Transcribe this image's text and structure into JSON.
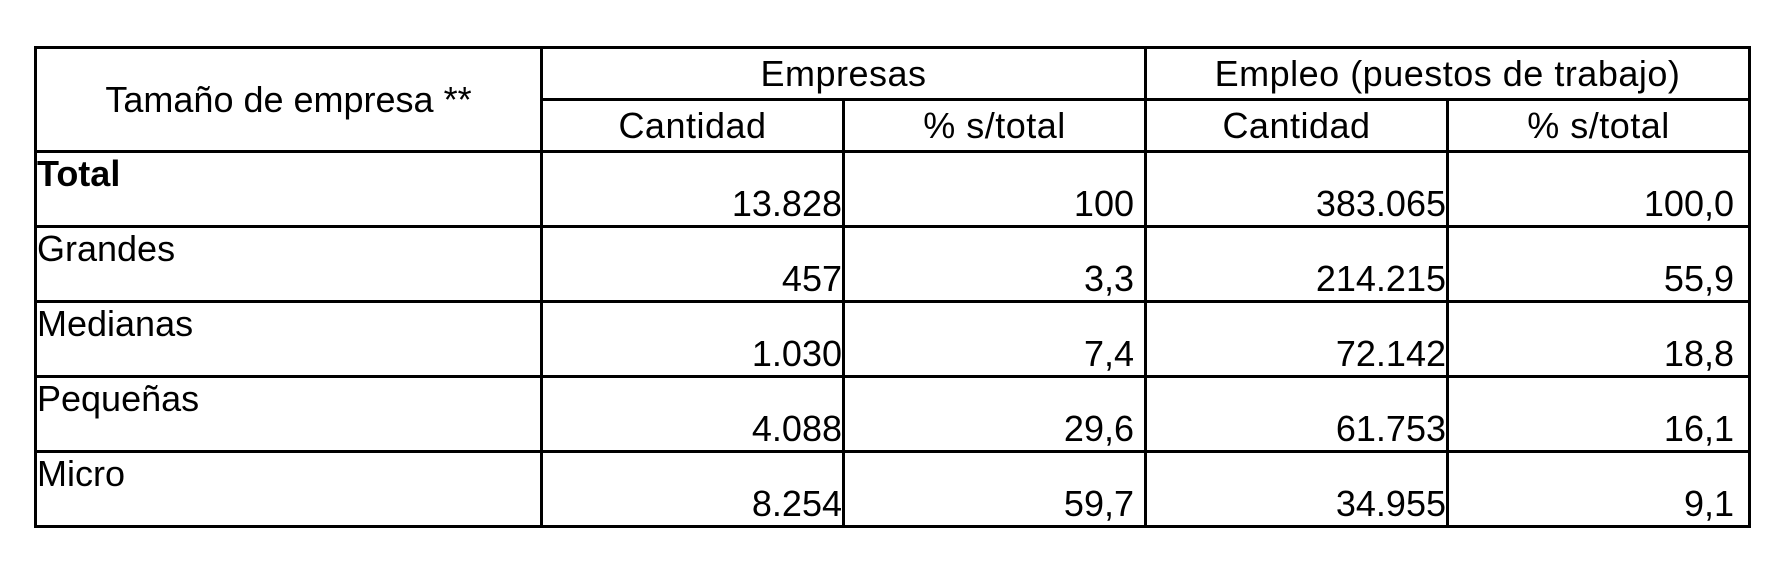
{
  "table": {
    "header": {
      "row_label": "Tamaño de empresa **",
      "groups": [
        {
          "label": "Empresas",
          "subs": [
            "Cantidad",
            "% s/total"
          ]
        },
        {
          "label": "Empleo (puestos de trabajo)",
          "subs": [
            "Cantidad",
            "% s/total"
          ]
        }
      ]
    },
    "rows": [
      {
        "label": "Total",
        "cells": [
          "13.828",
          "100",
          "383.065",
          "100,0"
        ]
      },
      {
        "label": "Grandes",
        "cells": [
          "457",
          "3,3",
          "214.215",
          "55,9"
        ]
      },
      {
        "label": "Medianas",
        "cells": [
          "1.030",
          "7,4",
          "72.142",
          "18,8"
        ]
      },
      {
        "label": "Pequeñas",
        "cells": [
          "4.088",
          "29,6",
          "61.753",
          "16,1"
        ]
      },
      {
        "label": "Micro",
        "cells": [
          "8.254",
          "59,7",
          "34.955",
          "9,1"
        ]
      }
    ]
  }
}
